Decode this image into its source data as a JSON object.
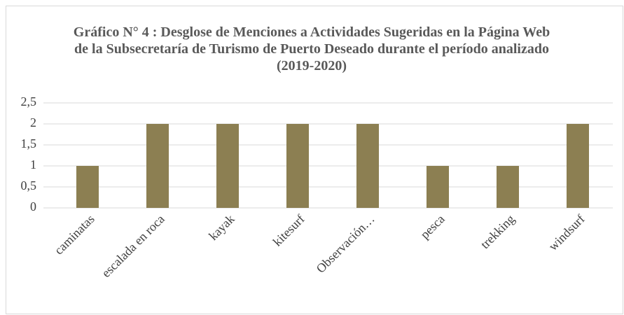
{
  "chart_data": {
    "type": "bar",
    "title": "Gráfico N° 4 : Desglose de Menciones a Actividades Sugeridas en la Página Web de la Subsecretaría de Turismo de Puerto Deseado durante el período analizado (2019-2020)",
    "categories": [
      "caminatas",
      "escalada en roca",
      "kayak",
      "kitesurf",
      "Observación…",
      "pesca",
      "trekking",
      "windsurf"
    ],
    "values": [
      1,
      2,
      2,
      2,
      2,
      1,
      1,
      2
    ],
    "color": "#8c7f52",
    "ylim": [
      0,
      2.5
    ],
    "yticks": [
      0,
      {
        "value": 0.5,
        "label": "0,5"
      },
      1,
      {
        "value": 1.5,
        "label": "1,5"
      },
      2,
      {
        "value": 2.5,
        "label": "2,5"
      }
    ],
    "grid": true
  }
}
